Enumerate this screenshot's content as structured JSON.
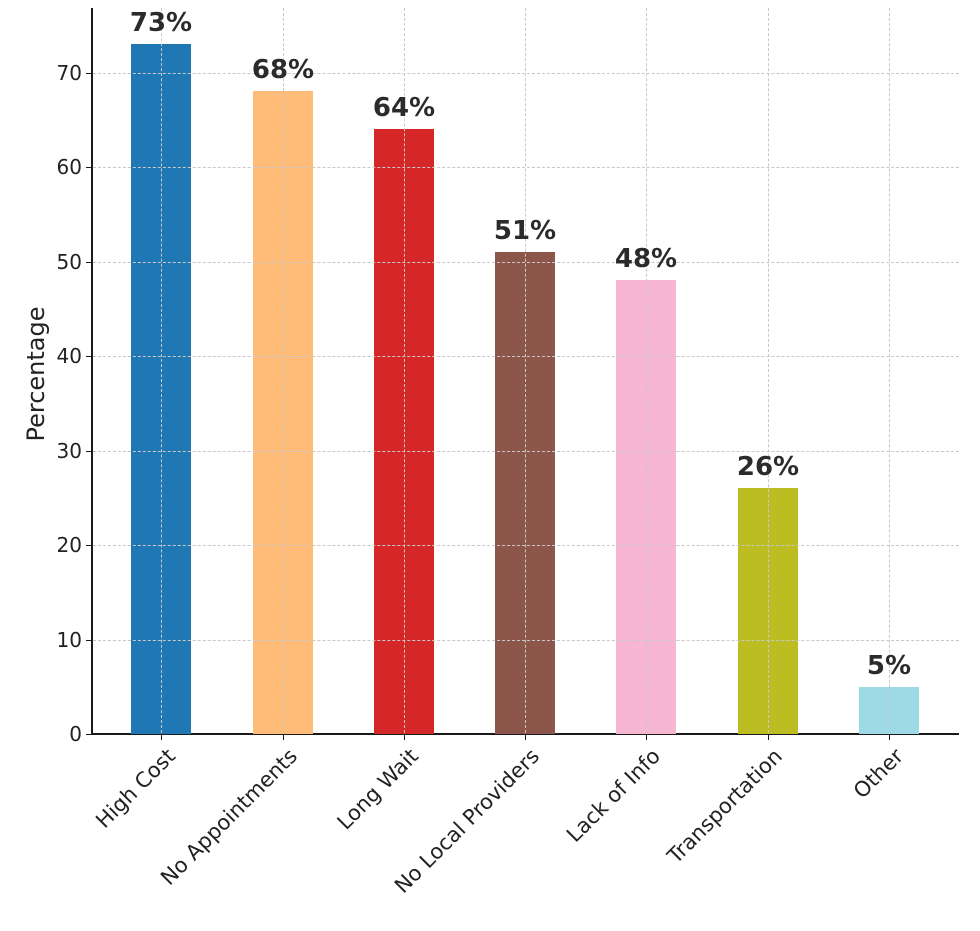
{
  "chart_data": {
    "type": "bar",
    "title": "Barriers to Accessing Healthcare Services by Geography",
    "xlabel": "",
    "ylabel": "Percentage",
    "ylim": [
      0,
      76
    ],
    "yticks": [
      0,
      10,
      20,
      30,
      40,
      50,
      60,
      70
    ],
    "grid": true,
    "legend": null,
    "categories": [
      "High Cost",
      "No Appointments",
      "Long Wait",
      "No Local Providers",
      "Lack of Info",
      "Transportation",
      "Other"
    ],
    "values": [
      73,
      68,
      64,
      51,
      48,
      26,
      5
    ],
    "value_labels": [
      "73%",
      "68%",
      "64%",
      "51%",
      "48%",
      "26%",
      "5%"
    ],
    "colors": [
      "#1f77b4",
      "#ffbb78",
      "#d62728",
      "#8c564b",
      "#f7b6d2",
      "#bcbd22",
      "#9edae5"
    ]
  },
  "labels": {
    "title": "",
    "ylabel": "Percentage",
    "yticks": [
      "0",
      "10",
      "20",
      "30",
      "40",
      "50",
      "60",
      "70"
    ],
    "bars": [
      {
        "category": "High Cost",
        "value": 73,
        "label": "73%",
        "color": "#1f77b4"
      },
      {
        "category": "No Appointments",
        "value": 68,
        "label": "68%",
        "color": "#ffbb78"
      },
      {
        "category": "Long Wait",
        "value": 64,
        "label": "64%",
        "color": "#d62728"
      },
      {
        "category": "No Local Providers",
        "value": 51,
        "label": "51%",
        "color": "#8c564b"
      },
      {
        "category": "Lack of Info",
        "value": 48,
        "label": "48%",
        "color": "#f7b6d2"
      },
      {
        "category": "Transportation",
        "value": 26,
        "label": "26%",
        "color": "#bcbd22"
      },
      {
        "category": "Other",
        "value": 5,
        "label": "5%",
        "color": "#9edae5"
      }
    ]
  }
}
